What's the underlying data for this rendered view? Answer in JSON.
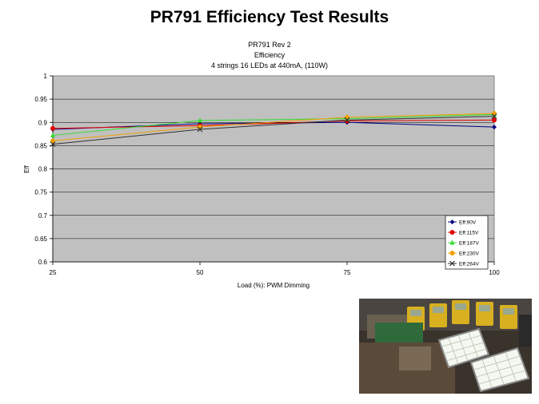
{
  "slide": {
    "title": "PR791 Efficiency Test Results"
  },
  "chart_data": {
    "type": "line",
    "title_lines": [
      "PR791 Rev 2",
      "Efficiency",
      "4 strings 16 LEDs at 440mA, (110W)"
    ],
    "xlabel": "Load (%): PWM Dimming",
    "ylabel": "Eff",
    "x": [
      25,
      50,
      75,
      100
    ],
    "x_ticks": [
      "25",
      "50",
      "75",
      "100"
    ],
    "y_ticks": [
      "0.6",
      "0.65",
      "0.7",
      "0.75",
      "0.8",
      "0.85",
      "0.9",
      "0.95",
      "1"
    ],
    "xlim": [
      25,
      100
    ],
    "ylim": [
      0.6,
      1.0
    ],
    "grid": "horizontal",
    "legend_position": "bottom-right",
    "plot_background": "#c0c0c0",
    "series": [
      {
        "name": "Eff:90V",
        "values": [
          0.885,
          0.897,
          0.9,
          0.89
        ],
        "color": "#000080",
        "marker": "diamond"
      },
      {
        "name": "Eff:115V",
        "values": [
          0.887,
          0.893,
          0.903,
          0.905
        ],
        "color": "#e00000",
        "marker": "circle"
      },
      {
        "name": "Eff:187V",
        "values": [
          0.872,
          0.904,
          0.908,
          0.917
        ],
        "color": "#33dd33",
        "marker": "triangle"
      },
      {
        "name": "Eff:230V",
        "values": [
          0.86,
          0.89,
          0.911,
          0.919
        ],
        "color": "#f0a000",
        "marker": "circle"
      },
      {
        "name": "Eff:264V",
        "values": [
          0.853,
          0.885,
          0.905,
          0.913
        ],
        "color": "#303030",
        "marker": "x"
      }
    ]
  }
}
